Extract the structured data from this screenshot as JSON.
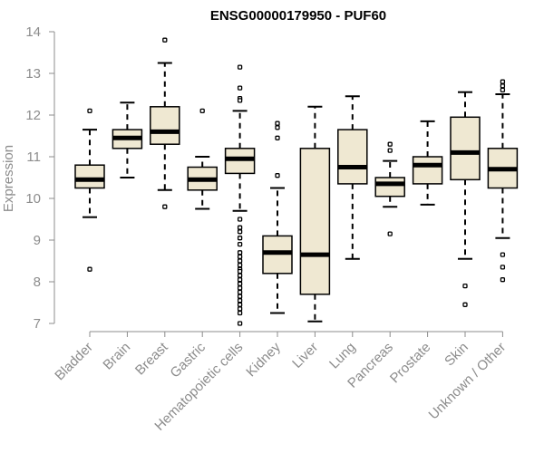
{
  "chart_data": {
    "type": "box",
    "title": "ENSG00000179950 - PUF60",
    "xlabel": "",
    "ylabel": "Expression",
    "ylim": [
      7,
      14
    ],
    "yticks": [
      7,
      8,
      9,
      10,
      11,
      12,
      13,
      14
    ],
    "colors": {
      "box_fill": "#efe8d2",
      "stroke": "#000000",
      "axis": "#8c8c8c"
    },
    "categories": [
      "Bladder",
      "Brain",
      "Breast",
      "Gastric",
      "Hematopoietic cells",
      "Kidney",
      "Liver",
      "Lung",
      "Pancreas",
      "Prostate",
      "Skin",
      "Unknown / Other"
    ],
    "boxes": [
      {
        "name": "Bladder",
        "whisker_low": 9.55,
        "q1": 10.25,
        "median": 10.45,
        "q3": 10.8,
        "whisker_high": 11.65,
        "outliers": [
          12.1,
          8.3
        ]
      },
      {
        "name": "Brain",
        "whisker_low": 10.5,
        "q1": 11.2,
        "median": 11.45,
        "q3": 11.65,
        "whisker_high": 12.3,
        "outliers": []
      },
      {
        "name": "Breast",
        "whisker_low": 10.2,
        "q1": 11.3,
        "median": 11.6,
        "q3": 12.2,
        "whisker_high": 13.25,
        "outliers": [
          13.8,
          9.8
        ]
      },
      {
        "name": "Gastric",
        "whisker_low": 9.75,
        "q1": 10.2,
        "median": 10.45,
        "q3": 10.75,
        "whisker_high": 11.0,
        "outliers": [
          12.1
        ]
      },
      {
        "name": "Hematopoietic cells",
        "whisker_low": 9.7,
        "q1": 10.6,
        "median": 10.95,
        "q3": 11.2,
        "whisker_high": 12.1,
        "outliers": [
          13.15,
          12.65,
          12.4,
          12.35,
          9.5,
          9.3,
          9.2,
          9.05,
          8.9,
          8.7,
          8.6,
          8.5,
          8.4,
          8.3,
          8.25,
          8.15,
          8.05,
          7.95,
          7.85,
          7.75,
          7.65,
          7.55,
          7.45,
          7.35,
          7.25,
          7.0
        ]
      },
      {
        "name": "Kidney",
        "whisker_low": 7.25,
        "q1": 8.2,
        "median": 8.7,
        "q3": 9.1,
        "whisker_high": 10.25,
        "outliers": [
          11.8,
          11.7,
          11.45,
          10.55
        ]
      },
      {
        "name": "Liver",
        "whisker_low": 7.05,
        "q1": 7.7,
        "median": 8.65,
        "q3": 11.2,
        "whisker_high": 12.2,
        "outliers": []
      },
      {
        "name": "Lung",
        "whisker_low": 8.55,
        "q1": 10.35,
        "median": 10.75,
        "q3": 11.65,
        "whisker_high": 12.45,
        "outliers": []
      },
      {
        "name": "Pancreas",
        "whisker_low": 9.8,
        "q1": 10.05,
        "median": 10.35,
        "q3": 10.5,
        "whisker_high": 10.9,
        "outliers": [
          11.3,
          11.15,
          9.15
        ]
      },
      {
        "name": "Prostate",
        "whisker_low": 9.85,
        "q1": 10.35,
        "median": 10.8,
        "q3": 11.0,
        "whisker_high": 11.85,
        "outliers": []
      },
      {
        "name": "Skin",
        "whisker_low": 8.55,
        "q1": 10.45,
        "median": 11.1,
        "q3": 11.95,
        "whisker_high": 12.55,
        "outliers": [
          7.9,
          7.45
        ]
      },
      {
        "name": "Unknown / Other",
        "whisker_low": 9.05,
        "q1": 10.25,
        "median": 10.7,
        "q3": 11.2,
        "whisker_high": 12.5,
        "outliers": [
          12.8,
          12.7,
          12.6,
          8.65,
          8.35,
          8.05
        ]
      }
    ]
  }
}
